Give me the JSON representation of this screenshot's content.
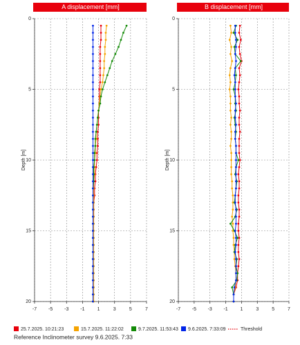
{
  "chart_data": [
    {
      "type": "line",
      "title": "A displacement [mm]",
      "y_label": "Depth [m]",
      "xlim": [
        -7,
        7
      ],
      "xticks": [
        -7,
        -5,
        -3,
        -1,
        1,
        3,
        5,
        7
      ],
      "ylim": [
        0,
        20
      ],
      "yticks": [
        0,
        5,
        10,
        15,
        20
      ],
      "y_inverted": true,
      "grid": true,
      "title_color": "#e8000b",
      "depth": [
        0.5,
        1,
        1.5,
        2,
        2.5,
        3,
        3.5,
        4,
        4.5,
        5,
        5.5,
        6,
        6.5,
        7,
        7.5,
        8,
        8.5,
        9,
        9.5,
        10,
        10.5,
        11,
        11.5,
        12,
        12.5,
        13,
        13.5,
        14,
        14.5,
        15,
        15.5,
        16,
        16.5,
        17,
        17.5,
        18,
        18.5,
        19,
        19.5,
        20
      ],
      "series": [
        {
          "name": "25.7.2025. 10:21:23",
          "color": "#e8000b",
          "values": [
            1.3,
            1.3,
            1.3,
            1.2,
            1.2,
            1.2,
            1.2,
            1.2,
            1.2,
            1.1,
            1.1,
            1.1,
            1.0,
            1.0,
            1.0,
            0.9,
            0.9,
            0.9,
            0.8,
            0.8,
            0.7,
            0.6,
            0.6,
            0.5,
            0.5,
            0.4,
            0.4,
            0.4,
            0.3,
            0.3,
            0.3,
            0.3,
            0.3,
            0.3,
            0.3,
            0.3,
            0.3,
            0.3,
            0.3,
            0.3
          ]
        },
        {
          "name": "15.7.2025. 11:22:02",
          "color": "#f5a300",
          "values": [
            2.0,
            1.9,
            1.9,
            1.8,
            1.8,
            1.7,
            1.7,
            1.6,
            1.5,
            1.3,
            1.2,
            1.1,
            1.0,
            0.9,
            0.8,
            0.7,
            0.7,
            0.6,
            0.6,
            0.5,
            0.5,
            0.5,
            0.4,
            0.4,
            0.4,
            0.4,
            0.4,
            0.4,
            0.4,
            0.4,
            0.4,
            0.4,
            0.4,
            0.4,
            0.4,
            0.4,
            0.4,
            0.4,
            0.4,
            0.4
          ]
        },
        {
          "name": "9.7.2025. 11:53:43",
          "color": "#138a07",
          "values": [
            4.5,
            4.1,
            3.8,
            3.5,
            3.1,
            2.7,
            2.4,
            2.1,
            1.8,
            1.5,
            1.3,
            1.2,
            1.0,
            0.9,
            0.8,
            0.7,
            0.6,
            0.6,
            0.5,
            0.5,
            0.4,
            0.4,
            0.4,
            0.3,
            0.3,
            0.3,
            0.3,
            0.3,
            0.3,
            0.3,
            0.3,
            0.3,
            0.3,
            0.3,
            0.3,
            0.3,
            0.3,
            0.3,
            0.3,
            0.3
          ]
        },
        {
          "name": "9.6.2025. 7:33:09",
          "color": "#0024e8",
          "values": [
            0.3,
            0.3,
            0.3,
            0.3,
            0.3,
            0.3,
            0.3,
            0.3,
            0.3,
            0.3,
            0.3,
            0.3,
            0.3,
            0.3,
            0.3,
            0.3,
            0.3,
            0.3,
            0.3,
            0.3,
            0.3,
            0.3,
            0.3,
            0.3,
            0.3,
            0.3,
            0.3,
            0.3,
            0.3,
            0.3,
            0.3,
            0.3,
            0.3,
            0.3,
            0.3,
            0.3,
            0.3,
            0.3,
            0.3,
            0.3
          ]
        }
      ]
    },
    {
      "type": "line",
      "title": "B displacement [mm]",
      "y_label": "Depth [m]",
      "xlim": [
        -7,
        7
      ],
      "xticks": [
        -7,
        -5,
        -3,
        -1,
        1,
        3,
        5,
        7
      ],
      "ylim": [
        0,
        20
      ],
      "yticks": [
        0,
        5,
        10,
        15,
        20
      ],
      "y_inverted": true,
      "grid": true,
      "title_color": "#e8000b",
      "depth": [
        0.5,
        1,
        1.5,
        2,
        2.5,
        3,
        3.5,
        4,
        4.5,
        5,
        5.5,
        6,
        6.5,
        7,
        7.5,
        8,
        8.5,
        9,
        9.5,
        10,
        10.5,
        11,
        11.5,
        12,
        12.5,
        13,
        13.5,
        14,
        14.5,
        15,
        15.5,
        16,
        16.5,
        17,
        17.5,
        18,
        18.5,
        19,
        19.5,
        20
      ],
      "series": [
        {
          "name": "25.7.2025. 10:21:23",
          "color": "#e8000b",
          "values": [
            0.8,
            0.7,
            0.9,
            0.7,
            0.8,
            1.0,
            0.7,
            0.8,
            0.7,
            0.6,
            0.7,
            0.7,
            0.8,
            0.7,
            0.7,
            0.8,
            0.7,
            0.7,
            0.7,
            0.8,
            0.7,
            0.6,
            0.7,
            0.7,
            0.6,
            0.6,
            0.7,
            0.7,
            0.6,
            0.6,
            0.7,
            0.6,
            0.6,
            0.7,
            0.6,
            0.5,
            0.5,
            0.3,
            0.0,
            0.0
          ]
        },
        {
          "name": "15.7.2025. 11:22:02",
          "color": "#f5a300",
          "values": [
            -0.4,
            -0.3,
            -0.5,
            -0.3,
            -0.4,
            -0.2,
            -0.4,
            -0.5,
            -0.4,
            -0.5,
            -0.4,
            -0.4,
            -0.4,
            -0.3,
            -0.4,
            -0.3,
            -0.3,
            -0.4,
            -0.3,
            -0.3,
            -0.3,
            -0.3,
            -0.2,
            -0.2,
            -0.1,
            -0.1,
            -0.1,
            -0.2,
            -0.1,
            -0.1,
            0.0,
            0.0,
            0.1,
            0.1,
            0.2,
            0.3,
            0.3,
            0.2,
            0.0,
            0.0
          ]
        },
        {
          "name": "9.7.2025. 11:53:43",
          "color": "#138a07",
          "values": [
            0.3,
            0.0,
            0.5,
            0.1,
            0.2,
            0.9,
            0.2,
            0.3,
            0.2,
            0.0,
            0.2,
            0.2,
            0.3,
            0.1,
            0.2,
            0.3,
            0.2,
            0.3,
            0.3,
            0.6,
            0.3,
            0.2,
            0.4,
            0.3,
            0.2,
            0.1,
            0.4,
            0.2,
            -0.4,
            0.1,
            0.5,
            0.2,
            0.1,
            0.4,
            0.3,
            0.5,
            0.4,
            -0.2,
            0.0,
            0.0
          ]
        },
        {
          "name": "9.6.2025. 7:33:09",
          "color": "#0024e8",
          "values": [
            0.2,
            0.2,
            0.3,
            0.3,
            0.2,
            0.3,
            0.2,
            0.1,
            0.2,
            0.2,
            0.2,
            0.3,
            0.2,
            0.2,
            0.3,
            0.2,
            0.2,
            0.3,
            0.3,
            0.3,
            0.3,
            0.3,
            0.3,
            0.3,
            0.2,
            0.2,
            0.3,
            0.3,
            0.3,
            0.2,
            0.3,
            0.3,
            0.2,
            0.3,
            0.3,
            0.3,
            0.3,
            0.1,
            0.0,
            0.0
          ]
        }
      ]
    }
  ],
  "threshold": {
    "label": "Threshold",
    "color": "#e8000b"
  },
  "footer": "Reference Inclinometer survey 9.6.2025. 7:33"
}
